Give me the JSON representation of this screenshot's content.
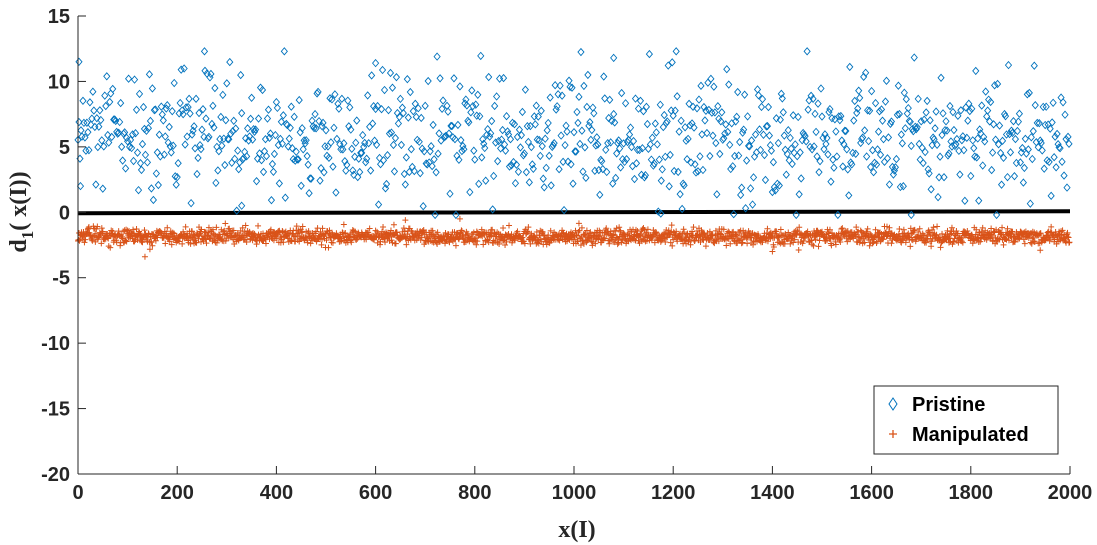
{
  "chart_data": {
    "type": "scatter",
    "title": "",
    "xlabel": "x(I)",
    "ylabel": "d",
    "ylabel_subscript": "1",
    "ylabel_suffix": "( x(I))",
    "xlim": [
      0,
      2000
    ],
    "ylim": [
      -20,
      15
    ],
    "xticks": [
      0,
      200,
      400,
      600,
      800,
      1000,
      1200,
      1400,
      1600,
      1800,
      2000
    ],
    "yticks": [
      -20,
      -15,
      -10,
      -5,
      0,
      5,
      10,
      15
    ],
    "xtick_labels": [
      "0",
      "200",
      "400",
      "600",
      "800",
      "1000",
      "1200",
      "1400",
      "1600",
      "1800",
      "2000"
    ],
    "ytick_labels": [
      "-20",
      "-15",
      "-10",
      "-5",
      "0",
      "5",
      "10",
      "15"
    ],
    "grid": false,
    "legend_position": "bottom-right",
    "threshold_line": {
      "y": 0,
      "color": "#000000"
    },
    "series": [
      {
        "name": "Pristine",
        "marker": "diamond",
        "color": "#0072BD",
        "count": 2000,
        "x_range": [
          0,
          2000
        ],
        "y_mean": 5.7,
        "y_spread": 2.4,
        "y_min": -0.2,
        "y_max": 12.3,
        "notable_points": [
          [
            2,
            11.5
          ],
          [
            5,
            2.0
          ],
          [
            255,
            12.3
          ],
          [
            600,
            11.4
          ],
          [
            1080,
            11.8
          ],
          [
            1175,
            -0.1
          ],
          [
            1680,
            -0.2
          ],
          [
            330,
            0.5
          ]
        ]
      },
      {
        "name": "Manipulated",
        "marker": "plus",
        "color": "#D95319",
        "count": 2000,
        "x_range": [
          0,
          2000
        ],
        "y_mean": -1.85,
        "y_spread": 0.3,
        "y_min": -3.4,
        "y_max": -0.5,
        "notable_points": [
          [
            135,
            -3.4
          ],
          [
            660,
            -0.6
          ],
          [
            770,
            -0.5
          ],
          [
            1400,
            -3.0
          ],
          [
            1940,
            -2.9
          ]
        ]
      }
    ]
  }
}
